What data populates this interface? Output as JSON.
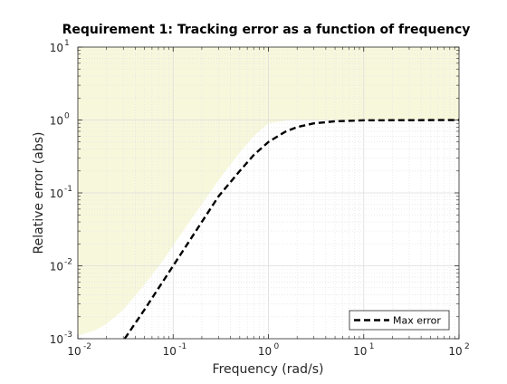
{
  "chart_data": {
    "type": "line",
    "title": "Requirement 1: Tracking error as a function of frequency",
    "xlabel": "Frequency (rad/s)",
    "ylabel": "Relative error (abs)",
    "xscale": "log",
    "yscale": "log",
    "xlim": [
      0.01,
      100
    ],
    "ylim": [
      0.001,
      10
    ],
    "xticks": [
      {
        "base": "10",
        "exp": "-2",
        "value": 0.01
      },
      {
        "base": "10",
        "exp": "-1",
        "value": 0.1
      },
      {
        "base": "10",
        "exp": "0",
        "value": 1
      },
      {
        "base": "10",
        "exp": "1",
        "value": 10
      },
      {
        "base": "10",
        "exp": "2",
        "value": 100
      }
    ],
    "yticks": [
      {
        "base": "10",
        "exp": "-3",
        "value": 0.001
      },
      {
        "base": "10",
        "exp": "-2",
        "value": 0.01
      },
      {
        "base": "10",
        "exp": "-1",
        "value": 0.1
      },
      {
        "base": "10",
        "exp": "0",
        "value": 1
      },
      {
        "base": "10",
        "exp": "1",
        "value": 10
      }
    ],
    "grid": true,
    "minor_grid": true,
    "legend_position": "bottom-right",
    "series": [
      {
        "name": "Max error",
        "style": "dashed",
        "color": "#000000",
        "x": [
          0.031,
          0.05,
          0.08,
          0.1,
          0.15,
          0.2,
          0.3,
          0.5,
          0.7,
          1.0,
          1.5,
          2.0,
          3.0,
          5.0,
          10.0,
          100.0
        ],
        "y": [
          0.001,
          0.0025,
          0.0064,
          0.01,
          0.0225,
          0.04,
          0.09,
          0.2,
          0.33,
          0.5,
          0.69,
          0.8,
          0.9,
          0.96,
          0.99,
          1.0
        ]
      }
    ],
    "shaded_region": {
      "description_color": "#f7f7dc",
      "edge_color": "#eaeac8",
      "boundary_x": [
        0.01,
        0.015,
        0.02,
        0.03,
        0.05,
        0.08,
        0.1,
        0.15,
        0.2,
        0.3,
        0.5,
        0.7,
        1.0,
        1.5,
        2.0,
        3.0,
        5.0,
        10.0,
        100.0
      ],
      "boundary_y": [
        0.0011,
        0.0013,
        0.0016,
        0.0025,
        0.0055,
        0.0123,
        0.019,
        0.041,
        0.07,
        0.15,
        0.36,
        0.6,
        0.9,
        0.98,
        1.0,
        1.0,
        1.0,
        1.0,
        1.0
      ]
    }
  },
  "colors": {
    "axes_background": "#ffffff",
    "grid_major": "#dcdcdc",
    "grid_minor": "#e4e4e4",
    "axis_line": "#262626",
    "legend_border": "#262626"
  }
}
